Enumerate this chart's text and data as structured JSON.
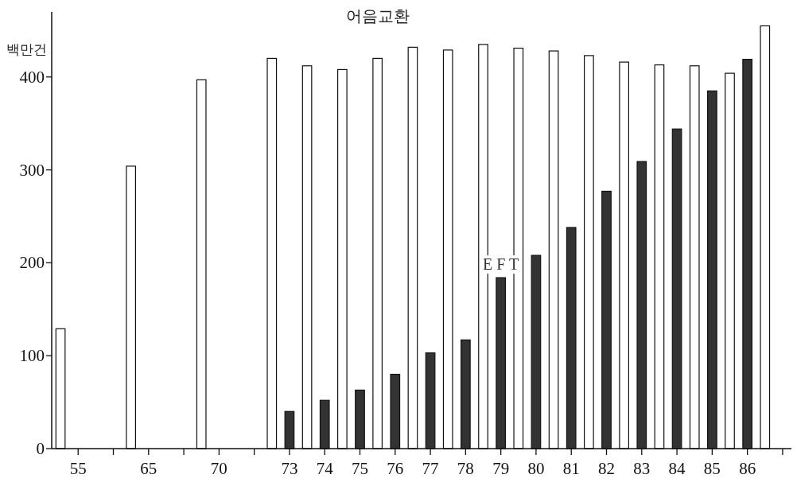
{
  "chart_data": {
    "type": "bar",
    "ylabel": "백만건",
    "categories": [
      "55",
      null,
      "65",
      null,
      "70",
      null,
      "73",
      "74",
      "75",
      "76",
      "77",
      "78",
      "79",
      "80",
      "81",
      "82",
      "83",
      "84",
      "85",
      "86",
      null
    ],
    "series": [
      {
        "name": "어음교환",
        "color": "#ffffff",
        "values": [
          129,
          null,
          304,
          null,
          397,
          null,
          420,
          412,
          408,
          420,
          432,
          429,
          435,
          431,
          428,
          423,
          416,
          413,
          412,
          404,
          455
        ]
      },
      {
        "name": "E F T",
        "color": "#333333",
        "values": [
          null,
          null,
          null,
          null,
          null,
          null,
          40,
          52,
          63,
          80,
          103,
          117,
          184,
          208,
          238,
          277,
          309,
          344,
          385,
          419,
          null
        ]
      }
    ],
    "ylim": [
      0,
      470
    ],
    "yticks": [
      0,
      100,
      200,
      300,
      400
    ]
  }
}
